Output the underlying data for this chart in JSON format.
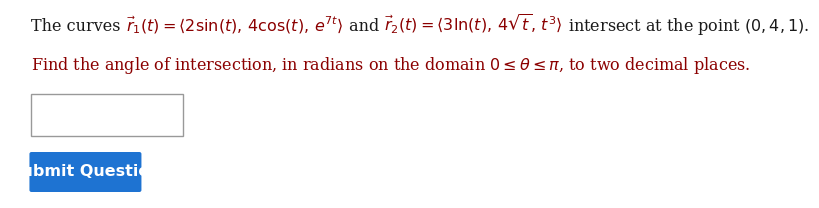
{
  "background_color": "#ffffff",
  "dark_red": "#8B0000",
  "black": "#1a1a1a",
  "line1_full": "$\\vec{r}_1(t) = \\langle 2\\sin(t),\\, 4\\cos(t),\\, e^{7t}\\rangle$ and $\\vec{r}_2(t) = \\langle 3\\ln(t),\\, 4\\sqrt{t},\\, t^3\\rangle$ intersect at the point $(0, 4, 1)$.",
  "line2_full": "Find the angle of intersection, in radians on the domain $0 \\leq \\theta \\leq \\pi$, to two decimal places.",
  "prefix": "The curves ",
  "suffix_intersect": " intersect at the point $(0, 4, 1)$.",
  "math_part1": "$\\vec{r}_1(t) = \\langle 2\\sin(t),\\, 4\\cos(t),\\, e^{7t}\\rangle$",
  "and_part": " and ",
  "math_part2": "$\\vec{r}_2(t) = \\langle 3\\ln(t),\\, 4\\sqrt{t},\\, t^3\\rangle$",
  "button_text": "Submit Question",
  "button_color": "#1e73d2",
  "button_text_color": "#ffffff",
  "font_size": 11.5
}
